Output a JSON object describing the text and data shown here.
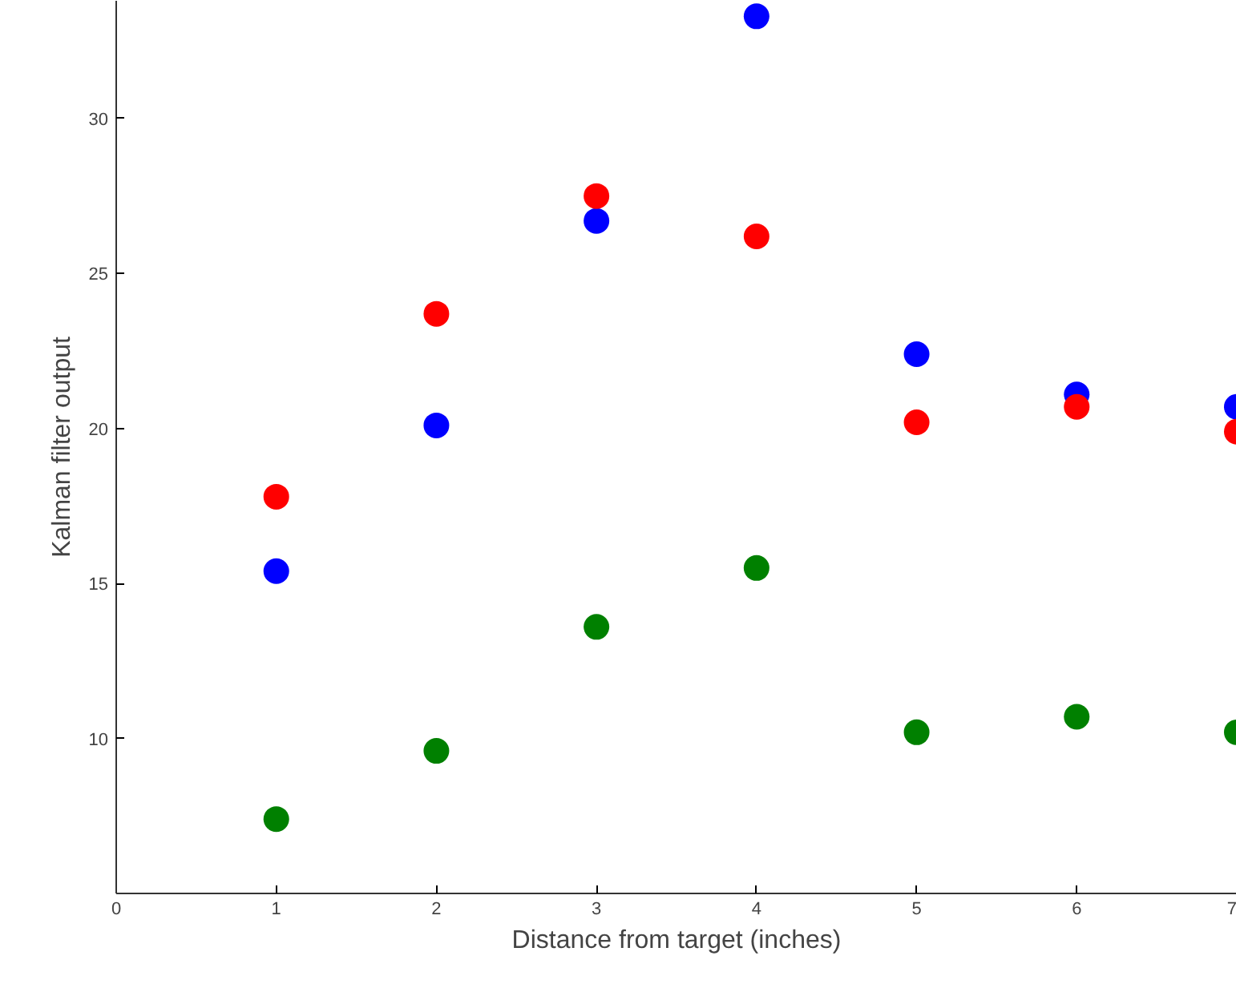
{
  "chart_data": {
    "type": "scatter",
    "xlabel": "Distance from target (inches)",
    "ylabel": "Kalman filter output",
    "x": [
      1,
      2,
      3,
      4,
      5,
      6,
      7
    ],
    "series": [
      {
        "color": "#0000ff",
        "values": [
          15.4,
          20.1,
          26.7,
          33.3,
          22.4,
          21.1,
          20.7
        ]
      },
      {
        "color": "#ff0000",
        "values": [
          17.8,
          23.7,
          27.5,
          26.2,
          20.2,
          20.7,
          19.9
        ]
      },
      {
        "color": "#008000",
        "values": [
          7.4,
          9.6,
          13.6,
          15.5,
          10.2,
          10.7,
          10.2
        ]
      }
    ],
    "xlim": [
      0,
      7
    ],
    "ylim": [
      5,
      33.8
    ],
    "xticks": [
      0,
      1,
      2,
      3,
      4,
      5,
      6,
      7
    ],
    "yticks": [
      10,
      15,
      20,
      25,
      30
    ],
    "marker": "circle",
    "grid": false
  }
}
